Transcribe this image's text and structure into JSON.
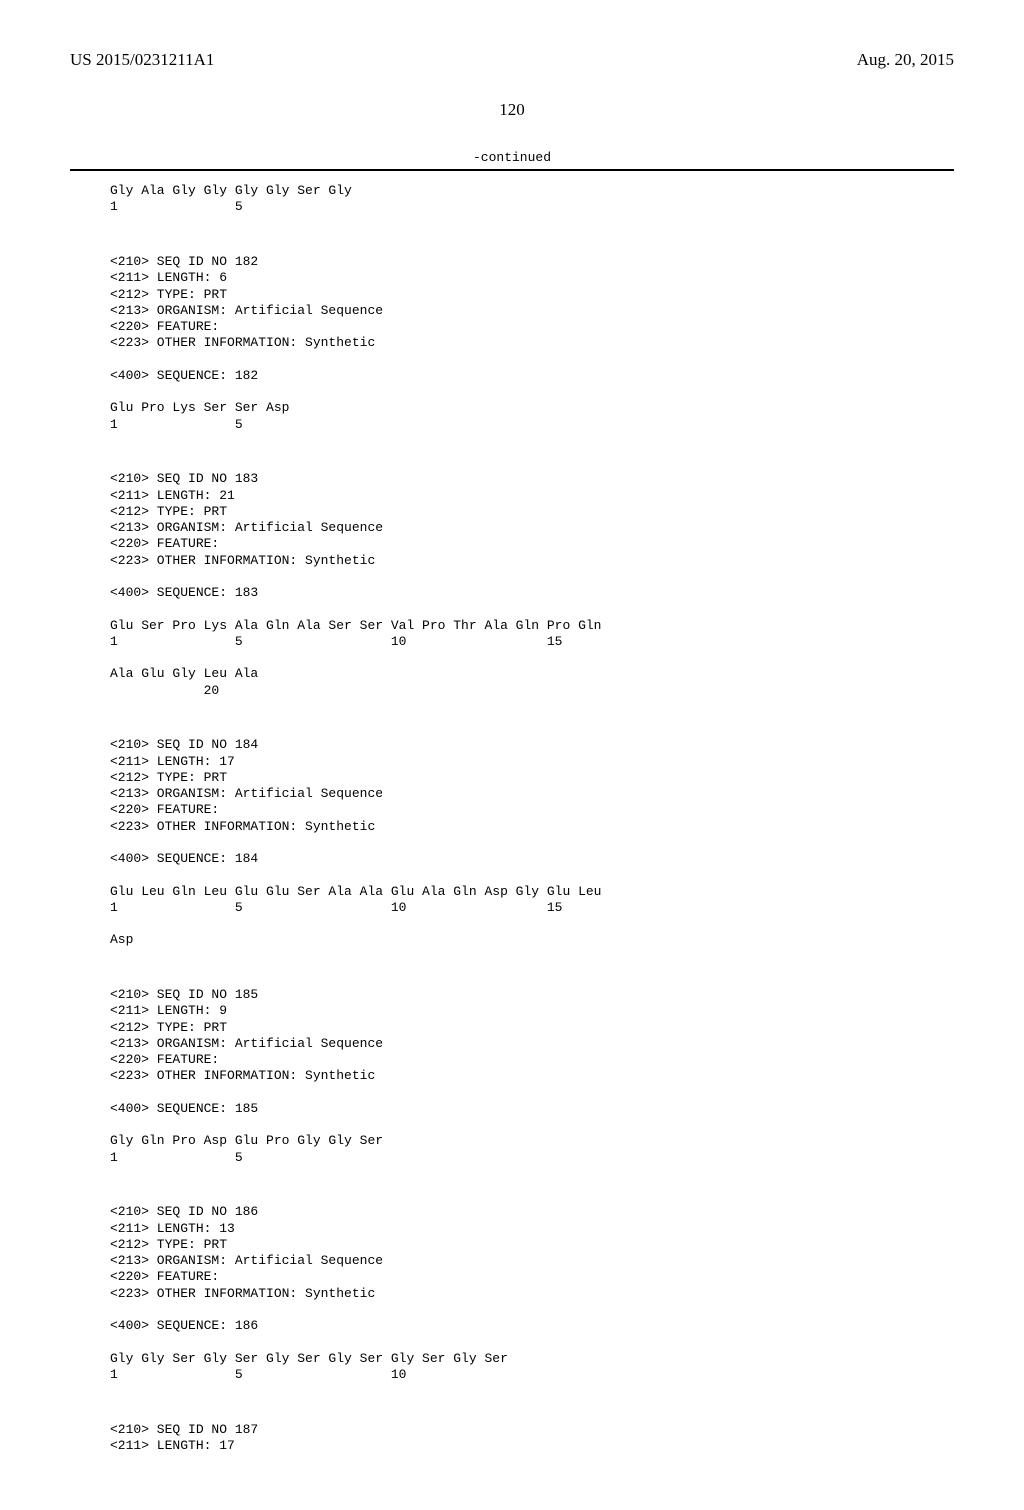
{
  "header": {
    "left": "US 2015/0231211A1",
    "right": "Aug. 20, 2015"
  },
  "page_number": "120",
  "continued_label": "-continued",
  "blocks": [
    {
      "text": "Gly Ala Gly Gly Gly Gly Ser Gly\n1               5"
    },
    {
      "text": "\n\n<210> SEQ ID NO 182\n<211> LENGTH: 6\n<212> TYPE: PRT\n<213> ORGANISM: Artificial Sequence\n<220> FEATURE:\n<223> OTHER INFORMATION: Synthetic\n\n<400> SEQUENCE: 182\n\nGlu Pro Lys Ser Ser Asp\n1               5"
    },
    {
      "text": "\n\n<210> SEQ ID NO 183\n<211> LENGTH: 21\n<212> TYPE: PRT\n<213> ORGANISM: Artificial Sequence\n<220> FEATURE:\n<223> OTHER INFORMATION: Synthetic\n\n<400> SEQUENCE: 183\n\nGlu Ser Pro Lys Ala Gln Ala Ser Ser Val Pro Thr Ala Gln Pro Gln\n1               5                   10                  15\n\nAla Glu Gly Leu Ala\n            20"
    },
    {
      "text": "\n\n<210> SEQ ID NO 184\n<211> LENGTH: 17\n<212> TYPE: PRT\n<213> ORGANISM: Artificial Sequence\n<220> FEATURE:\n<223> OTHER INFORMATION: Synthetic\n\n<400> SEQUENCE: 184\n\nGlu Leu Gln Leu Glu Glu Ser Ala Ala Glu Ala Gln Asp Gly Glu Leu\n1               5                   10                  15\n\nAsp"
    },
    {
      "text": "\n\n<210> SEQ ID NO 185\n<211> LENGTH: 9\n<212> TYPE: PRT\n<213> ORGANISM: Artificial Sequence\n<220> FEATURE:\n<223> OTHER INFORMATION: Synthetic\n\n<400> SEQUENCE: 185\n\nGly Gln Pro Asp Glu Pro Gly Gly Ser\n1               5"
    },
    {
      "text": "\n\n<210> SEQ ID NO 186\n<211> LENGTH: 13\n<212> TYPE: PRT\n<213> ORGANISM: Artificial Sequence\n<220> FEATURE:\n<223> OTHER INFORMATION: Synthetic\n\n<400> SEQUENCE: 186\n\nGly Gly Ser Gly Ser Gly Ser Gly Ser Gly Ser Gly Ser\n1               5                   10"
    },
    {
      "text": "\n\n<210> SEQ ID NO 187\n<211> LENGTH: 17"
    }
  ]
}
